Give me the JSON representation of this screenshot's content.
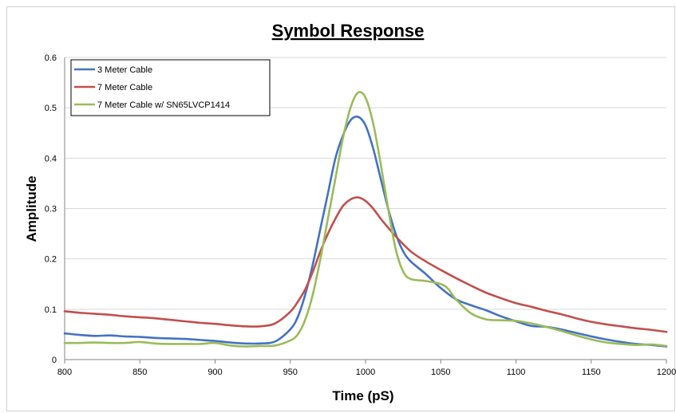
{
  "chart_data": {
    "type": "line",
    "title": "Symbol Response",
    "xlabel": "Time (pS)",
    "ylabel": "Amplitude",
    "xlim": [
      800,
      1200
    ],
    "ylim": [
      0,
      0.6
    ],
    "x_ticks": [
      800,
      850,
      900,
      950,
      1000,
      1050,
      1100,
      1150,
      1200
    ],
    "y_ticks": [
      0,
      0.1,
      0.2,
      0.3,
      0.4,
      0.5,
      0.6
    ],
    "x_tick_labels": [
      "800",
      "850",
      "900",
      "950",
      "1000",
      "1050",
      "1100",
      "1150",
      "1200"
    ],
    "y_tick_labels": [
      "0",
      "0.1",
      "0.2",
      "0.3",
      "0.4",
      "0.5",
      "0.6"
    ],
    "grid": "horizontal",
    "legend_position": "top-left",
    "series": [
      {
        "name": "3 Meter Cable",
        "color": "#4472c4",
        "points": [
          [
            800,
            0.052
          ],
          [
            810,
            0.049
          ],
          [
            820,
            0.047
          ],
          [
            830,
            0.048
          ],
          [
            840,
            0.046
          ],
          [
            850,
            0.045
          ],
          [
            860,
            0.043
          ],
          [
            870,
            0.042
          ],
          [
            880,
            0.041
          ],
          [
            890,
            0.039
          ],
          [
            900,
            0.037
          ],
          [
            910,
            0.034
          ],
          [
            920,
            0.032
          ],
          [
            930,
            0.032
          ],
          [
            940,
            0.036
          ],
          [
            950,
            0.06
          ],
          [
            955,
            0.085
          ],
          [
            960,
            0.13
          ],
          [
            965,
            0.19
          ],
          [
            970,
            0.26
          ],
          [
            975,
            0.33
          ],
          [
            980,
            0.4
          ],
          [
            985,
            0.445
          ],
          [
            990,
            0.475
          ],
          [
            995,
            0.482
          ],
          [
            1000,
            0.465
          ],
          [
            1005,
            0.42
          ],
          [
            1010,
            0.36
          ],
          [
            1015,
            0.3
          ],
          [
            1020,
            0.25
          ],
          [
            1025,
            0.215
          ],
          [
            1030,
            0.195
          ],
          [
            1040,
            0.17
          ],
          [
            1050,
            0.142
          ],
          [
            1060,
            0.12
          ],
          [
            1070,
            0.108
          ],
          [
            1080,
            0.098
          ],
          [
            1090,
            0.086
          ],
          [
            1100,
            0.076
          ],
          [
            1110,
            0.067
          ],
          [
            1120,
            0.065
          ],
          [
            1130,
            0.06
          ],
          [
            1140,
            0.053
          ],
          [
            1150,
            0.046
          ],
          [
            1160,
            0.04
          ],
          [
            1170,
            0.035
          ],
          [
            1180,
            0.031
          ],
          [
            1190,
            0.029
          ],
          [
            1200,
            0.026
          ]
        ]
      },
      {
        "name": "7 Meter Cable",
        "color": "#c0504d",
        "points": [
          [
            800,
            0.096
          ],
          [
            810,
            0.093
          ],
          [
            820,
            0.091
          ],
          [
            830,
            0.089
          ],
          [
            840,
            0.086
          ],
          [
            850,
            0.084
          ],
          [
            860,
            0.082
          ],
          [
            870,
            0.079
          ],
          [
            880,
            0.076
          ],
          [
            890,
            0.073
          ],
          [
            900,
            0.071
          ],
          [
            910,
            0.068
          ],
          [
            920,
            0.066
          ],
          [
            930,
            0.066
          ],
          [
            940,
            0.072
          ],
          [
            950,
            0.095
          ],
          [
            955,
            0.115
          ],
          [
            960,
            0.14
          ],
          [
            965,
            0.175
          ],
          [
            970,
            0.215
          ],
          [
            975,
            0.25
          ],
          [
            980,
            0.28
          ],
          [
            985,
            0.305
          ],
          [
            990,
            0.318
          ],
          [
            995,
            0.322
          ],
          [
            1000,
            0.315
          ],
          [
            1005,
            0.3
          ],
          [
            1010,
            0.28
          ],
          [
            1015,
            0.262
          ],
          [
            1020,
            0.245
          ],
          [
            1030,
            0.215
          ],
          [
            1040,
            0.195
          ],
          [
            1050,
            0.178
          ],
          [
            1060,
            0.162
          ],
          [
            1070,
            0.147
          ],
          [
            1080,
            0.133
          ],
          [
            1090,
            0.122
          ],
          [
            1100,
            0.112
          ],
          [
            1110,
            0.105
          ],
          [
            1120,
            0.097
          ],
          [
            1130,
            0.09
          ],
          [
            1140,
            0.082
          ],
          [
            1150,
            0.075
          ],
          [
            1160,
            0.07
          ],
          [
            1170,
            0.066
          ],
          [
            1180,
            0.062
          ],
          [
            1190,
            0.059
          ],
          [
            1200,
            0.055
          ]
        ]
      },
      {
        "name": "7 Meter Cable w/ SN65LVCP1414",
        "color": "#9bbb59",
        "points": [
          [
            800,
            0.033
          ],
          [
            810,
            0.033
          ],
          [
            820,
            0.034
          ],
          [
            830,
            0.033
          ],
          [
            840,
            0.033
          ],
          [
            850,
            0.035
          ],
          [
            860,
            0.032
          ],
          [
            870,
            0.031
          ],
          [
            880,
            0.031
          ],
          [
            890,
            0.031
          ],
          [
            900,
            0.033
          ],
          [
            910,
            0.028
          ],
          [
            920,
            0.026
          ],
          [
            930,
            0.027
          ],
          [
            940,
            0.028
          ],
          [
            950,
            0.038
          ],
          [
            955,
            0.05
          ],
          [
            960,
            0.08
          ],
          [
            965,
            0.13
          ],
          [
            970,
            0.2
          ],
          [
            975,
            0.28
          ],
          [
            980,
            0.36
          ],
          [
            985,
            0.44
          ],
          [
            990,
            0.5
          ],
          [
            995,
            0.53
          ],
          [
            1000,
            0.52
          ],
          [
            1005,
            0.47
          ],
          [
            1010,
            0.39
          ],
          [
            1015,
            0.3
          ],
          [
            1020,
            0.22
          ],
          [
            1025,
            0.175
          ],
          [
            1030,
            0.16
          ],
          [
            1040,
            0.156
          ],
          [
            1050,
            0.15
          ],
          [
            1055,
            0.14
          ],
          [
            1060,
            0.12
          ],
          [
            1070,
            0.092
          ],
          [
            1080,
            0.08
          ],
          [
            1090,
            0.078
          ],
          [
            1100,
            0.077
          ],
          [
            1110,
            0.072
          ],
          [
            1120,
            0.065
          ],
          [
            1130,
            0.057
          ],
          [
            1140,
            0.048
          ],
          [
            1150,
            0.04
          ],
          [
            1160,
            0.034
          ],
          [
            1170,
            0.031
          ],
          [
            1180,
            0.029
          ],
          [
            1190,
            0.03
          ],
          [
            1200,
            0.027
          ]
        ]
      }
    ]
  }
}
